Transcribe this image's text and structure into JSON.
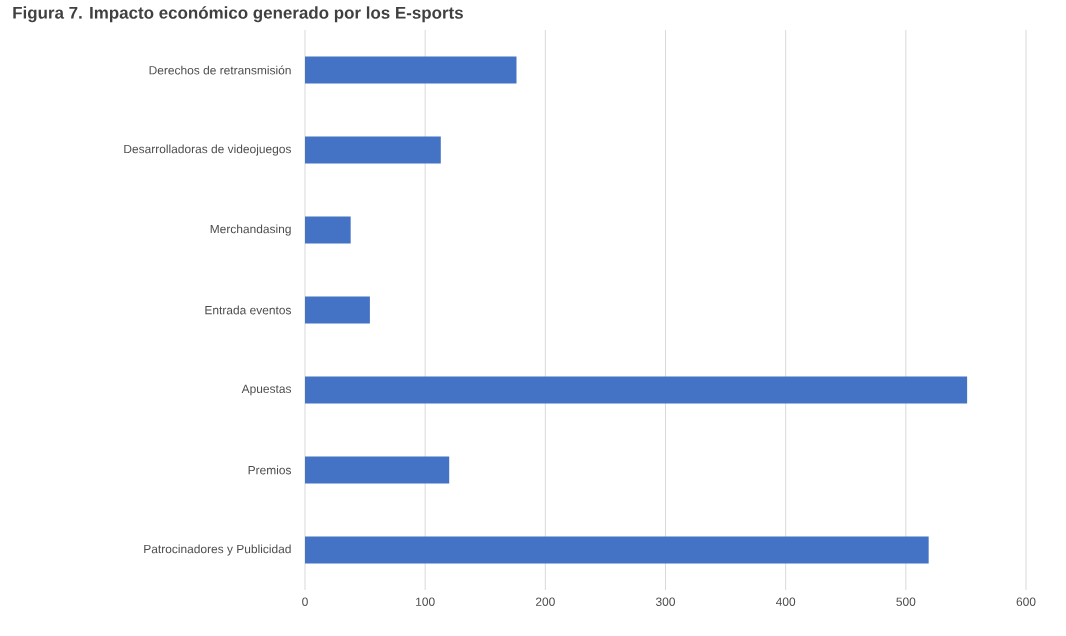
{
  "chart_data": {
    "type": "bar",
    "orientation": "horizontal",
    "title": "Figura 7. Impacto económico generado por los E-sports",
    "categories": [
      "Derechos de retransmisión",
      "Desarrolladoras de videojuegos",
      "Merchandasing",
      "Entrada eventos",
      "Apuestas",
      "Premios",
      "Patrocinadores y Publicidad"
    ],
    "values": [
      176,
      113,
      38,
      54,
      551,
      120,
      519
    ],
    "color": "#4472c4",
    "xlim": [
      0,
      600
    ],
    "xticks": [
      0,
      100,
      200,
      300,
      400,
      500,
      600
    ],
    "grid": "x"
  }
}
